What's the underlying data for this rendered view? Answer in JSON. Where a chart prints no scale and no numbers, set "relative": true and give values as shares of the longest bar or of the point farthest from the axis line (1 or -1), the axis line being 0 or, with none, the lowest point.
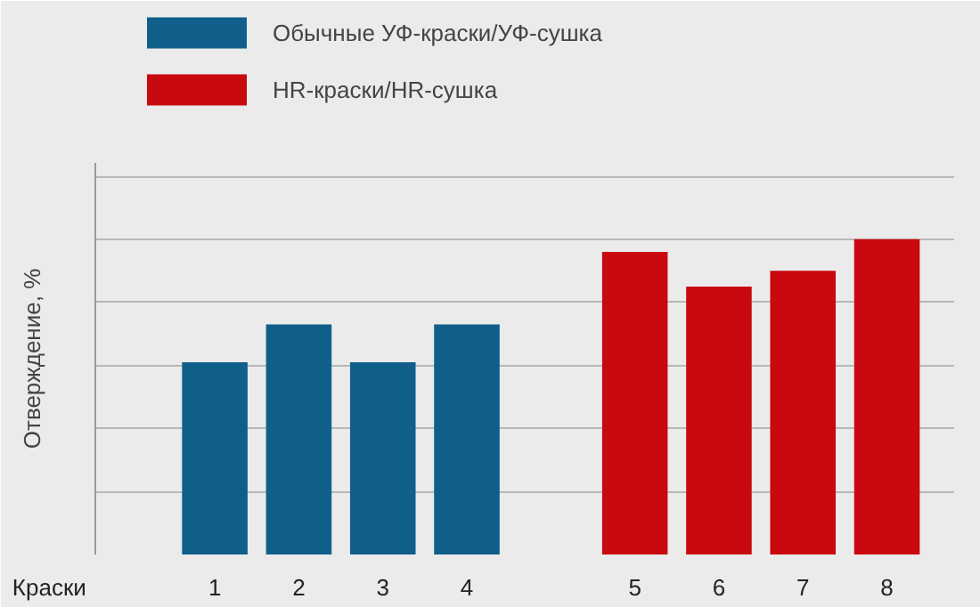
{
  "chart_data": {
    "type": "bar",
    "relative": true,
    "xlabel": "Краски",
    "ylabel": "Отверждение, %",
    "categories": [
      "1",
      "2",
      "3",
      "4",
      null,
      "5",
      "6",
      "7",
      "8"
    ],
    "series": [
      {
        "name": "Обычные УФ-краски/УФ-сушка",
        "color": "#0f5f8a",
        "values": [
          0.61,
          0.73,
          0.61,
          0.73,
          null,
          null,
          null,
          null,
          null
        ]
      },
      {
        "name": "HR-краски/HR-сушка",
        "color": "#c8090f",
        "values": [
          null,
          null,
          null,
          null,
          null,
          0.96,
          0.85,
          0.9,
          1.0
        ]
      }
    ],
    "grid": "y",
    "legend": "top left"
  }
}
